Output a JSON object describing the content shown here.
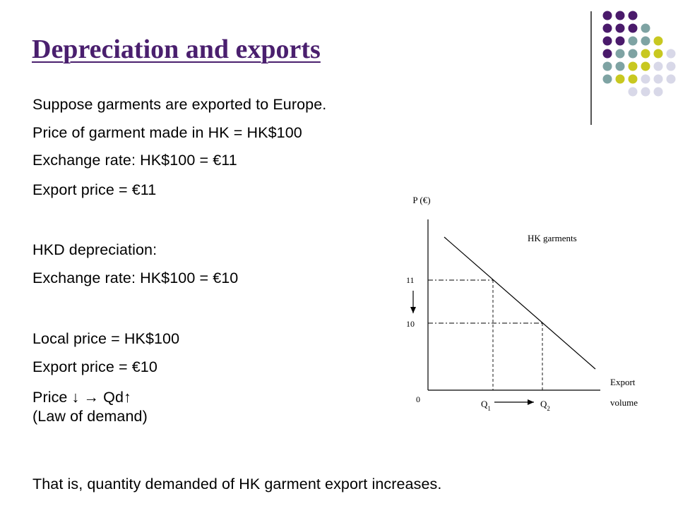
{
  "slide": {
    "title": "Depreciation and exports",
    "lines": [
      "Suppose garments are exported to Europe.",
      "Price of garment made in HK = HK$100",
      "Exchange rate: HK$100 = €11",
      "Export price = €11",
      "HKD depreciation:",
      "Exchange rate: HK$100 = €10",
      "Local price = HK$100",
      "Export price = €10",
      "Price ↓  → Qd↑",
      "(Law of demand)",
      "That is, quantity demanded of HK garment export increases."
    ]
  },
  "decoration": {
    "colors": {
      "purple": "#4a1a6b",
      "teal": "#7ea3a3",
      "olive": "#c8c820",
      "lavender": "#d8d8e8"
    }
  },
  "chart_data": {
    "type": "line",
    "ylabel": "P (€)",
    "xlabel_line1": "Export",
    "xlabel_line2": "volume",
    "origin_label": "0",
    "series": [
      {
        "name": "HK garments"
      }
    ],
    "y_levels": [
      "11",
      "10"
    ],
    "x_levels": [
      "Q1",
      "Q2"
    ],
    "price_change": {
      "from": 11,
      "to": 10
    },
    "quantity_change": {
      "from": "Q1",
      "to": "Q2"
    }
  }
}
